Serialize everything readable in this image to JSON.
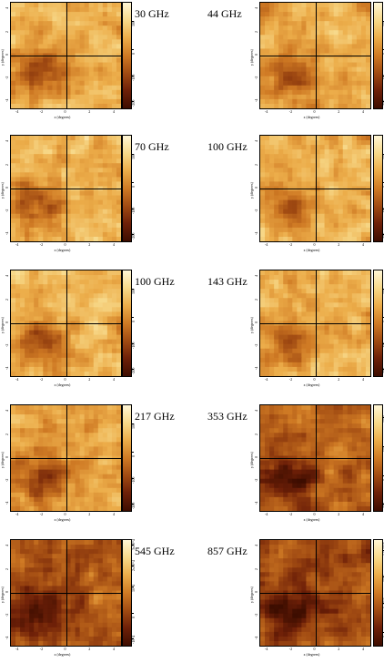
{
  "colors": {
    "colormap": [
      "#3d0d00",
      "#6e2008",
      "#a04a12",
      "#cf7a24",
      "#ecad4a",
      "#f7d888",
      "#fff6d6"
    ]
  },
  "axes": {
    "xlabel": "x (degrees)",
    "ylabel": "y (degrees)",
    "xticks": [
      "-4",
      "-2",
      "0",
      "2",
      "4"
    ],
    "yticks": [
      "-4",
      "-2",
      "0",
      "2",
      "4"
    ]
  },
  "panels": [
    {
      "freq": "30 GHz",
      "cbar_ticks": [
        "100",
        "0",
        "-100",
        "-200"
      ],
      "cbar_levels": [
        0.82,
        0.55,
        0.3,
        0.06
      ],
      "darkness": 0.25,
      "seed": 1
    },
    {
      "freq": "44 GHz",
      "cbar_ticks": [
        "100",
        "0",
        "-100",
        "-200"
      ],
      "cbar_levels": [
        0.82,
        0.55,
        0.3,
        0.06
      ],
      "darkness": 0.25,
      "seed": 2
    },
    {
      "freq": "70 GHz",
      "cbar_ticks": [
        "100",
        "0",
        "-100",
        "-200"
      ],
      "cbar_levels": [
        0.82,
        0.55,
        0.3,
        0.06
      ],
      "darkness": 0.22,
      "seed": 3
    },
    {
      "freq": "100 GHz",
      "cbar_ticks": [
        "100",
        "0",
        "-100",
        "-200"
      ],
      "cbar_levels": [
        0.82,
        0.55,
        0.3,
        0.06
      ],
      "darkness": 0.22,
      "seed": 4
    },
    {
      "freq": "100 GHz",
      "cbar_ticks": [
        "100",
        "0",
        "-100",
        "-200"
      ],
      "cbar_levels": [
        0.82,
        0.55,
        0.3,
        0.06
      ],
      "darkness": 0.22,
      "seed": 5
    },
    {
      "freq": "143 GHz",
      "cbar_ticks": [
        "100",
        "0",
        "-100",
        "-200"
      ],
      "cbar_levels": [
        0.82,
        0.55,
        0.3,
        0.06
      ],
      "darkness": 0.22,
      "seed": 6
    },
    {
      "freq": "217 GHz",
      "cbar_ticks": [
        "100",
        "0",
        "-100",
        "-200"
      ],
      "cbar_levels": [
        0.82,
        0.55,
        0.3,
        0.06
      ],
      "darkness": 0.28,
      "seed": 7
    },
    {
      "freq": "353 GHz",
      "cbar_ticks": [
        "1000",
        "500",
        "0",
        "-500"
      ],
      "cbar_levels": [
        0.88,
        0.6,
        0.33,
        0.06
      ],
      "darkness": 0.62,
      "seed": 8
    },
    {
      "freq": "545 GHz",
      "cbar_ticks": [
        "3x10^4",
        "2x10^4",
        "10^4",
        "0",
        "-10^4"
      ],
      "cbar_levels": [
        0.95,
        0.75,
        0.55,
        0.3,
        0.06
      ],
      "darkness": 0.68,
      "seed": 9
    },
    {
      "freq": "857 GHz",
      "cbar_ticks": [
        "1.5x10^6",
        "10^6",
        "5x10^5",
        "0"
      ],
      "cbar_levels": [
        0.9,
        0.65,
        0.4,
        0.12
      ],
      "darkness": 0.72,
      "seed": 10
    }
  ]
}
